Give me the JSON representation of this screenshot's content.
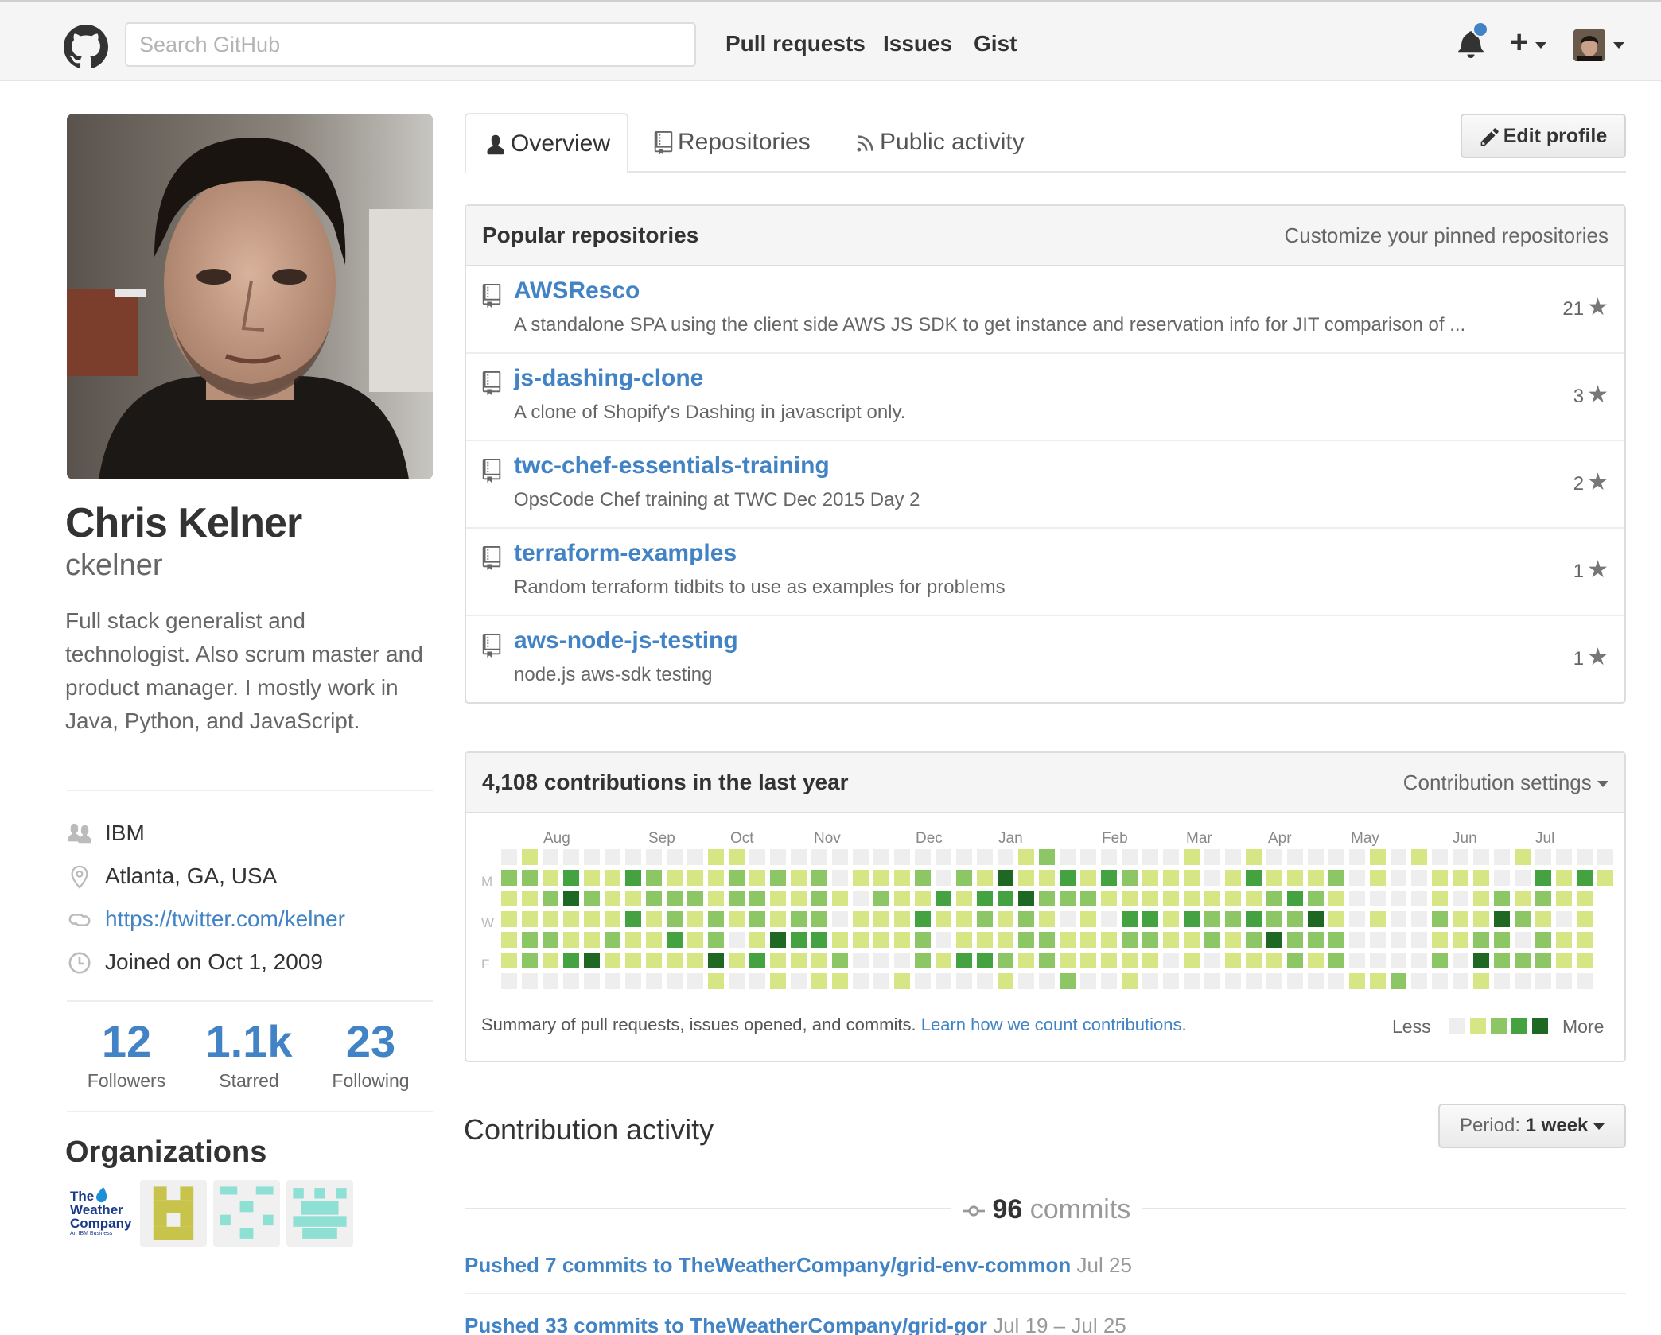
{
  "header": {
    "search_placeholder": "Search GitHub",
    "nav": [
      "Pull requests",
      "Issues",
      "Gist"
    ]
  },
  "profile": {
    "name": "Chris Kelner",
    "username": "ckelner",
    "bio": "Full stack generalist and technologist. Also scrum master and product manager. I mostly work in Java, Python, and JavaScript.",
    "company": "IBM",
    "location": "Atlanta, GA, USA",
    "website": "https://twitter.com/kelner",
    "joined": "Joined on Oct 1, 2009",
    "stats": [
      {
        "value": "12",
        "label": "Followers"
      },
      {
        "value": "1.1k",
        "label": "Starred"
      },
      {
        "value": "23",
        "label": "Following"
      }
    ],
    "organizations_title": "Organizations",
    "organizations": [
      {
        "name": "The Weather Company",
        "lines": [
          "The",
          "Weather",
          "Company"
        ],
        "tagline": "An IBM Business"
      },
      {
        "name": "identicon-yellow"
      },
      {
        "name": "identicon-teal-1"
      },
      {
        "name": "identicon-teal-2"
      }
    ]
  },
  "tabs": {
    "overview": "Overview",
    "repositories": "Repositories",
    "public_activity": "Public activity",
    "edit_profile": "Edit profile"
  },
  "popular": {
    "title": "Popular repositories",
    "customize": "Customize your pinned repositories",
    "repos": [
      {
        "name": "AWSResco",
        "desc": "A standalone SPA using the client side AWS JS SDK to get instance and reservation info for JIT comparison of ...",
        "stars": "21"
      },
      {
        "name": "js-dashing-clone",
        "desc": "A clone of Shopify's Dashing in javascript only.",
        "stars": "3"
      },
      {
        "name": "twc-chef-essentials-training",
        "desc": "OpsCode Chef training at TWC Dec 2015 Day 2",
        "stars": "2"
      },
      {
        "name": "terraform-examples",
        "desc": "Random terraform tidbits to use as examples for problems",
        "stars": "1"
      },
      {
        "name": "aws-node-js-testing",
        "desc": "node.js aws-sdk testing",
        "stars": "1"
      }
    ]
  },
  "contributions": {
    "title": "4,108 contributions in the last year",
    "settings": "Contribution settings",
    "months": [
      "Aug",
      "Sep",
      "Oct",
      "Nov",
      "Dec",
      "Jan",
      "Feb",
      "Mar",
      "Apr",
      "May",
      "Jun",
      "Jul"
    ],
    "day_labels": [
      "M",
      "W",
      "F"
    ],
    "summary": "Summary of pull requests, issues opened, and commits.",
    "learn_link": "Learn how we count contributions",
    "period_end": ".",
    "less": "Less",
    "more": "More",
    "colors": [
      "#eeeeee",
      "#d6e685",
      "#8cc665",
      "#44a340",
      "#1e6823"
    ]
  },
  "activity": {
    "title": "Contribution activity",
    "period_label": "Period:",
    "period_value": "1 week",
    "commits_count": "96",
    "commits_word": "commits",
    "pushes": [
      {
        "text": "Pushed 7 commits to TheWeatherCompany/grid-env-common",
        "date": "Jul 25"
      },
      {
        "text": "Pushed 33 commits to TheWeatherCompany/grid-gor",
        "date": "Jul 19 – Jul 25"
      }
    ]
  }
}
